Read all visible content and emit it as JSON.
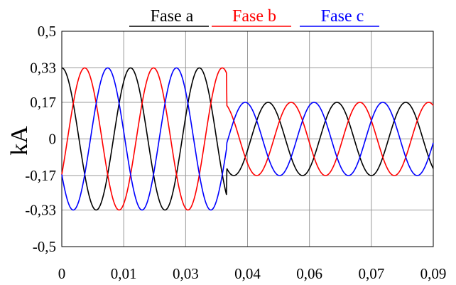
{
  "chart_data": {
    "type": "line",
    "ylabel": "kA",
    "xlabel": "",
    "title": "",
    "x_tick_labels": [
      "0",
      "0,01",
      "0,03",
      "0,04",
      "0,06",
      "0,07",
      "0,09"
    ],
    "x_ticks": [
      0,
      0.015,
      0.03,
      0.045,
      0.06,
      0.075,
      0.09
    ],
    "y_tick_labels": [
      "0,5",
      "0,33",
      "0,17",
      "0",
      "-0,17",
      "-0,33",
      "-0,5"
    ],
    "y_ticks": [
      0.5,
      0.33,
      0.17,
      0,
      -0.17,
      -0.33,
      -0.5
    ],
    "xlim": [
      0,
      0.09
    ],
    "ylim": [
      -0.5,
      0.5
    ],
    "grid": true,
    "legend_position": "top",
    "series": [
      {
        "name": "Fase a",
        "color": "#000000",
        "amplitude_before": 0.33,
        "amplitude_after": 0.17,
        "phase_deg": 0
      },
      {
        "name": "Fase b",
        "color": "#ff0000",
        "amplitude_before": 0.33,
        "amplitude_after": 0.17,
        "phase_deg": -120
      },
      {
        "name": "Fase c",
        "color": "#0000ff",
        "amplitude_before": 0.33,
        "amplitude_after": 0.17,
        "phase_deg": 120
      }
    ],
    "frequency_hz": 60,
    "step_time": 0.04
  }
}
